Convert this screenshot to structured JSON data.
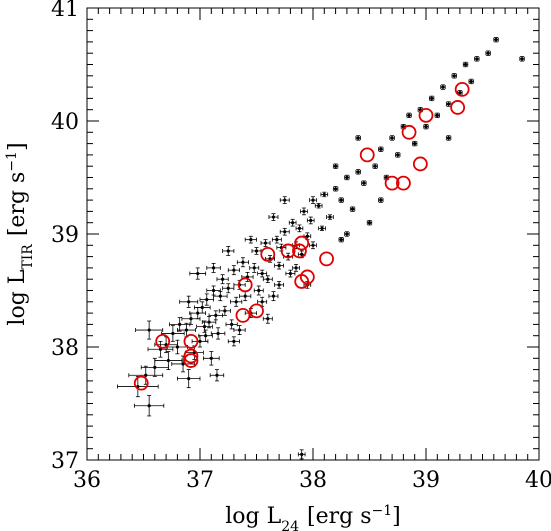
{
  "chart_data": {
    "type": "scatter",
    "xlabel": "log L",
    "xlabel_sub": "24",
    "xlabel_units": "[erg s",
    "xlabel_sup": "−1",
    "xlabel_close": "]",
    "ylabel": "log L",
    "ylabel_sub": "TIR",
    "ylabel_units": "[erg s",
    "ylabel_sup": "−1",
    "ylabel_close": "]",
    "xlim": [
      36,
      40
    ],
    "ylim": [
      37,
      41
    ],
    "xticks": [
      "36",
      "37",
      "38",
      "39",
      "40"
    ],
    "yticks": [
      "37",
      "38",
      "39",
      "40",
      "41"
    ],
    "grid": false,
    "legend": "none",
    "colors": {
      "points": "#000000",
      "highlight": "#e00000"
    },
    "series": [
      {
        "points": [
          [
            36.45,
            37.65,
            0.18,
            0.09
          ],
          [
            36.52,
            37.75,
            0.15,
            0.08
          ],
          [
            36.55,
            37.48,
            0.13,
            0.09
          ],
          [
            36.6,
            37.82,
            0.12,
            0.08
          ],
          [
            36.65,
            37.98,
            0.11,
            0.07
          ],
          [
            36.7,
            38.02,
            0.1,
            0.07
          ],
          [
            36.72,
            37.88,
            0.12,
            0.08
          ],
          [
            36.76,
            38.12,
            0.1,
            0.07
          ],
          [
            36.8,
            38.0,
            0.09,
            0.06
          ],
          [
            36.82,
            38.2,
            0.09,
            0.06
          ],
          [
            36.85,
            37.85,
            0.1,
            0.07
          ],
          [
            36.88,
            38.15,
            0.08,
            0.06
          ],
          [
            36.9,
            37.72,
            0.1,
            0.08
          ],
          [
            36.92,
            38.25,
            0.08,
            0.05
          ],
          [
            36.95,
            37.95,
            0.08,
            0.06
          ],
          [
            36.98,
            38.3,
            0.07,
            0.05
          ],
          [
            37.0,
            38.05,
            0.07,
            0.05
          ],
          [
            37.02,
            38.35,
            0.07,
            0.05
          ],
          [
            37.04,
            38.18,
            0.07,
            0.05
          ],
          [
            37.06,
            38.42,
            0.06,
            0.05
          ],
          [
            37.08,
            38.22,
            0.06,
            0.05
          ],
          [
            37.1,
            37.9,
            0.07,
            0.06
          ],
          [
            37.12,
            38.5,
            0.06,
            0.04
          ],
          [
            37.14,
            38.28,
            0.06,
            0.04
          ],
          [
            37.16,
            38.12,
            0.06,
            0.05
          ],
          [
            37.18,
            38.45,
            0.06,
            0.04
          ],
          [
            37.2,
            38.6,
            0.05,
            0.04
          ],
          [
            37.22,
            38.32,
            0.05,
            0.04
          ],
          [
            37.25,
            38.52,
            0.05,
            0.04
          ],
          [
            37.28,
            38.2,
            0.05,
            0.04
          ],
          [
            37.3,
            38.68,
            0.05,
            0.04
          ],
          [
            37.32,
            38.4,
            0.05,
            0.04
          ],
          [
            37.35,
            38.55,
            0.05,
            0.04
          ],
          [
            37.38,
            38.75,
            0.05,
            0.04
          ],
          [
            37.4,
            38.45,
            0.05,
            0.04
          ],
          [
            37.42,
            38.62,
            0.05,
            0.04
          ],
          [
            37.45,
            38.3,
            0.05,
            0.04
          ],
          [
            37.48,
            38.7,
            0.04,
            0.04
          ],
          [
            37.5,
            38.85,
            0.04,
            0.03
          ],
          [
            37.52,
            38.5,
            0.04,
            0.04
          ],
          [
            37.55,
            38.65,
            0.04,
            0.03
          ],
          [
            37.58,
            38.92,
            0.04,
            0.03
          ],
          [
            37.6,
            38.6,
            0.04,
            0.03
          ],
          [
            37.62,
            38.78,
            0.04,
            0.03
          ],
          [
            37.65,
            38.45,
            0.04,
            0.04
          ],
          [
            37.68,
            38.95,
            0.04,
            0.03
          ],
          [
            37.7,
            38.72,
            0.04,
            0.03
          ],
          [
            37.72,
            38.88,
            0.04,
            0.03
          ],
          [
            37.75,
            39.02,
            0.04,
            0.03
          ],
          [
            37.78,
            38.8,
            0.04,
            0.03
          ],
          [
            37.8,
            38.65,
            0.04,
            0.03
          ],
          [
            37.82,
            39.1,
            0.03,
            0.03
          ],
          [
            37.85,
            38.9,
            0.03,
            0.03
          ],
          [
            37.88,
            39.05,
            0.03,
            0.03
          ],
          [
            37.9,
            38.82,
            0.03,
            0.03
          ],
          [
            37.92,
            39.2,
            0.03,
            0.03
          ],
          [
            37.95,
            38.98,
            0.03,
            0.03
          ],
          [
            37.98,
            39.12,
            0.03,
            0.03
          ],
          [
            38.0,
            38.9,
            0.03,
            0.03
          ],
          [
            38.05,
            39.25,
            0.03,
            0.02
          ],
          [
            38.08,
            39.05,
            0.03,
            0.02
          ],
          [
            38.1,
            39.35,
            0.03,
            0.02
          ],
          [
            38.15,
            39.15,
            0.03,
            0.02
          ],
          [
            38.2,
            39.4,
            0.02,
            0.02
          ],
          [
            38.25,
            39.3,
            0.02,
            0.02
          ],
          [
            38.3,
            39.5,
            0.02,
            0.02
          ],
          [
            38.35,
            39.22,
            0.02,
            0.02
          ],
          [
            38.4,
            39.55,
            0.02,
            0.02
          ],
          [
            38.45,
            39.45,
            0.02,
            0.02
          ],
          [
            38.55,
            39.6,
            0.02,
            0.02
          ],
          [
            38.6,
            39.75,
            0.02,
            0.02
          ],
          [
            38.65,
            39.5,
            0.02,
            0.02
          ],
          [
            38.7,
            39.85,
            0.02,
            0.02
          ],
          [
            38.75,
            39.7,
            0.02,
            0.02
          ],
          [
            38.8,
            39.95,
            0.02,
            0.02
          ],
          [
            38.85,
            40.05,
            0.02,
            0.02
          ],
          [
            38.9,
            39.8,
            0.02,
            0.02
          ],
          [
            38.95,
            40.1,
            0.02,
            0.02
          ],
          [
            39.0,
            39.95,
            0.02,
            0.02
          ],
          [
            39.05,
            40.2,
            0.02,
            0.02
          ],
          [
            39.1,
            40.05,
            0.02,
            0.02
          ],
          [
            39.15,
            40.3,
            0.02,
            0.02
          ],
          [
            39.2,
            40.15,
            0.02,
            0.02
          ],
          [
            39.25,
            40.4,
            0.02,
            0.02
          ],
          [
            39.3,
            40.25,
            0.02,
            0.02
          ],
          [
            39.35,
            40.5,
            0.02,
            0.02
          ],
          [
            39.4,
            40.35,
            0.02,
            0.02
          ],
          [
            39.45,
            40.55,
            0.02,
            0.02
          ],
          [
            39.55,
            40.6,
            0.02,
            0.02
          ],
          [
            39.62,
            40.72,
            0.02,
            0.02
          ],
          [
            39.85,
            40.55,
            0.02,
            0.02
          ],
          [
            37.3,
            38.05,
            0.05,
            0.04
          ],
          [
            37.6,
            38.25,
            0.04,
            0.04
          ],
          [
            37.95,
            38.55,
            0.03,
            0.03
          ],
          [
            38.25,
            38.95,
            0.02,
            0.02
          ],
          [
            38.5,
            39.1,
            0.02,
            0.02
          ],
          [
            37.9,
            37.05,
            0.03,
            0.04
          ],
          [
            36.98,
            38.65,
            0.07,
            0.05
          ],
          [
            37.25,
            38.85,
            0.05,
            0.04
          ],
          [
            37.75,
            39.3,
            0.04,
            0.03
          ],
          [
            38.4,
            39.85,
            0.02,
            0.02
          ],
          [
            36.55,
            38.15,
            0.12,
            0.08
          ],
          [
            37.15,
            37.75,
            0.06,
            0.05
          ],
          [
            38.6,
            39.3,
            0.02,
            0.02
          ],
          [
            39.2,
            39.85,
            0.02,
            0.02
          ],
          [
            37.05,
            38.1,
            0.06,
            0.05
          ],
          [
            37.35,
            38.15,
            0.05,
            0.04
          ],
          [
            37.55,
            38.4,
            0.04,
            0.04
          ],
          [
            37.7,
            38.55,
            0.04,
            0.03
          ],
          [
            37.85,
            38.7,
            0.03,
            0.03
          ],
          [
            38.0,
            39.3,
            0.03,
            0.03
          ],
          [
            38.2,
            39.6,
            0.02,
            0.02
          ],
          [
            38.3,
            39.0,
            0.02,
            0.02
          ],
          [
            36.9,
            38.4,
            0.08,
            0.05
          ],
          [
            37.12,
            38.7,
            0.06,
            0.04
          ],
          [
            37.45,
            38.95,
            0.05,
            0.03
          ],
          [
            37.65,
            39.15,
            0.04,
            0.03
          ]
        ]
      }
    ],
    "highlighted": [
      [
        36.48,
        37.68
      ],
      [
        36.67,
        38.05
      ],
      [
        36.92,
        38.05
      ],
      [
        36.92,
        37.92
      ],
      [
        36.92,
        37.88
      ],
      [
        37.38,
        38.28
      ],
      [
        37.5,
        38.32
      ],
      [
        37.4,
        38.55
      ],
      [
        37.6,
        38.82
      ],
      [
        37.78,
        38.85
      ],
      [
        37.88,
        38.85
      ],
      [
        37.9,
        38.92
      ],
      [
        37.9,
        38.58
      ],
      [
        37.95,
        38.62
      ],
      [
        38.12,
        38.78
      ],
      [
        38.48,
        39.7
      ],
      [
        38.7,
        39.45
      ],
      [
        38.8,
        39.45
      ],
      [
        38.85,
        39.9
      ],
      [
        38.95,
        39.62
      ],
      [
        39.0,
        40.05
      ],
      [
        39.28,
        40.12
      ],
      [
        39.32,
        40.28
      ]
    ]
  }
}
